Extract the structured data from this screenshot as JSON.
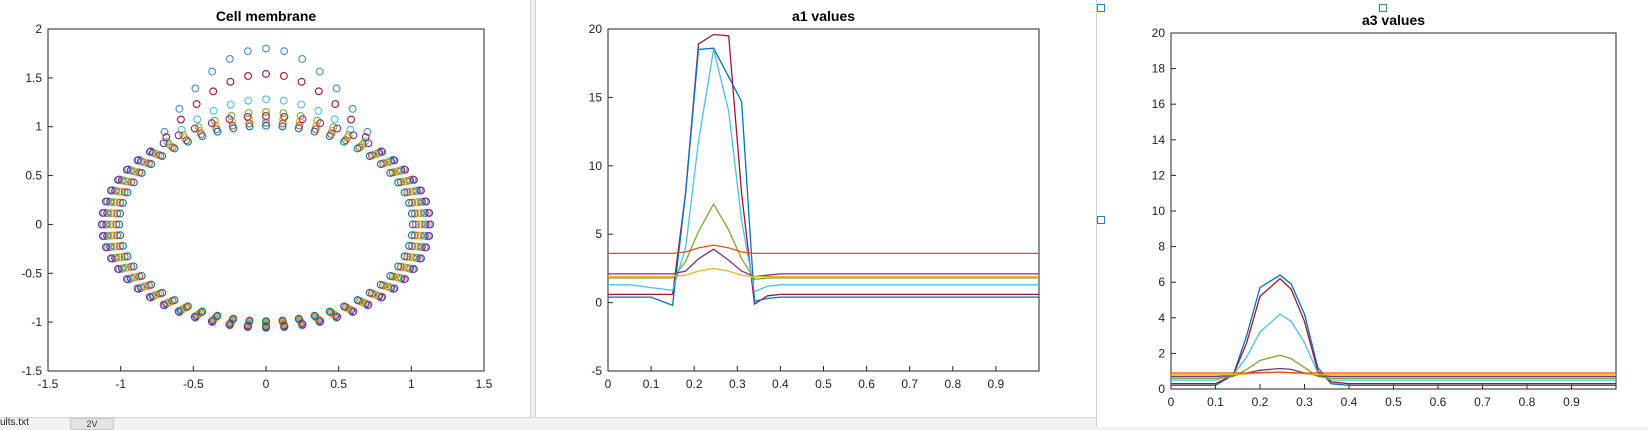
{
  "chart_data": [
    {
      "type": "scatter",
      "title": "Cell membrane",
      "xlim": [
        -1.5,
        1.5
      ],
      "ylim": [
        -1.5,
        2
      ],
      "xticks": [
        "-1.5",
        "-1",
        "-0.5",
        "0",
        "0.5",
        "1",
        "1.5"
      ],
      "yticks": [
        "-1.5",
        "-1",
        "-0.5",
        "0",
        "0.5",
        "1",
        "1.5",
        "2"
      ],
      "marker": "circle-open",
      "series": [
        {
          "color": "#4a8fc4",
          "rx": 1.12,
          "ry": 1.06,
          "bump_height": 0.74
        },
        {
          "color": "#a2142f",
          "rx": 1.1,
          "ry": 1.04,
          "bump_height": 0.5
        },
        {
          "color": "#4dbeee",
          "rx": 1.09,
          "ry": 1.03,
          "bump_height": 0.25
        },
        {
          "color": "#77ac30",
          "rx": 1.07,
          "ry": 1.02,
          "bump_height": 0.13
        },
        {
          "color": "#edb120",
          "rx": 1.05,
          "ry": 1.01,
          "bump_height": 0.08
        },
        {
          "color": "#d95319",
          "rx": 1.03,
          "ry": 1.0,
          "bump_height": 0.04
        },
        {
          "color": "#0072bd",
          "rx": 1.01,
          "ry": 0.99,
          "bump_height": 0.02
        },
        {
          "color": "#7e2f8e",
          "rx": 1.13,
          "ry": 1.05,
          "bump_height": 0.06
        }
      ]
    },
    {
      "type": "line",
      "title": "a1 values",
      "xlim": [
        0,
        1
      ],
      "ylim": [
        -5,
        20
      ],
      "xticks": [
        "0",
        "0.1",
        "0.2",
        "0.3",
        "0.4",
        "0.5",
        "0.6",
        "0.7",
        "0.8",
        "0.9"
      ],
      "yticks": [
        "-5",
        "0",
        "5",
        "10",
        "15",
        "20"
      ],
      "x": [
        0,
        0.05,
        0.1,
        0.15,
        0.18,
        0.21,
        0.245,
        0.28,
        0.31,
        0.34,
        0.37,
        0.4,
        0.45,
        0.5,
        0.6,
        0.7,
        0.8,
        0.9,
        1.0
      ],
      "series": [
        {
          "color": "#a2142f",
          "values": [
            0.6,
            0.6,
            0.6,
            0.6,
            8.0,
            18.9,
            19.6,
            19.5,
            8.0,
            -0.1,
            0.5,
            0.6,
            0.6,
            0.6,
            0.6,
            0.6,
            0.6,
            0.6,
            0.6
          ]
        },
        {
          "color": "#0072bd",
          "values": [
            0.4,
            0.4,
            0.4,
            -0.2,
            8.0,
            18.5,
            18.6,
            16.5,
            14.7,
            0.1,
            0.3,
            0.4,
            0.4,
            0.4,
            0.4,
            0.4,
            0.4,
            0.4,
            0.4
          ]
        },
        {
          "color": "#4dbeee",
          "values": [
            1.3,
            1.3,
            1.1,
            0.9,
            4.0,
            11.8,
            18.5,
            14.0,
            6.0,
            0.8,
            1.2,
            1.3,
            1.3,
            1.3,
            1.3,
            1.3,
            1.3,
            1.3,
            1.3
          ]
        },
        {
          "color": "#77ac30",
          "values": [
            1.8,
            1.8,
            1.8,
            1.8,
            3.0,
            5.2,
            7.2,
            5.3,
            3.2,
            1.7,
            1.8,
            1.8,
            1.8,
            1.8,
            1.8,
            1.8,
            1.8,
            1.8,
            1.8
          ]
        },
        {
          "color": "#7e2f8e",
          "values": [
            2.1,
            2.1,
            2.1,
            2.1,
            2.3,
            3.2,
            3.9,
            3.1,
            2.3,
            1.9,
            2.0,
            2.1,
            2.1,
            2.1,
            2.1,
            2.1,
            2.1,
            2.1,
            2.1
          ]
        },
        {
          "color": "#edb120",
          "values": [
            1.9,
            1.9,
            1.9,
            1.9,
            2.0,
            2.3,
            2.5,
            2.3,
            2.0,
            1.9,
            1.9,
            1.9,
            1.9,
            1.9,
            1.9,
            1.9,
            1.9,
            1.9,
            1.9
          ]
        },
        {
          "color": "#d95319",
          "values": [
            3.6,
            3.6,
            3.6,
            3.6,
            3.7,
            4.0,
            4.2,
            4.0,
            3.7,
            3.6,
            3.6,
            3.6,
            3.6,
            3.6,
            3.6,
            3.6,
            3.6,
            3.6,
            3.6
          ]
        }
      ]
    },
    {
      "type": "line",
      "title": "a3 values",
      "xlim": [
        0,
        1
      ],
      "ylim": [
        0,
        20
      ],
      "xticks": [
        "0",
        "0.1",
        "0.2",
        "0.3",
        "0.4",
        "0.5",
        "0.6",
        "0.7",
        "0.8",
        "0.9"
      ],
      "yticks": [
        "0",
        "2",
        "4",
        "6",
        "8",
        "10",
        "12",
        "14",
        "16",
        "18",
        "20"
      ],
      "x": [
        0,
        0.05,
        0.1,
        0.14,
        0.17,
        0.2,
        0.245,
        0.27,
        0.3,
        0.33,
        0.36,
        0.4,
        0.5,
        0.6,
        0.7,
        0.8,
        0.9,
        1.0
      ],
      "series": [
        {
          "color": "#0072bd",
          "values": [
            0.2,
            0.2,
            0.2,
            0.8,
            3.0,
            5.7,
            6.4,
            5.9,
            4.2,
            1.2,
            0.3,
            0.2,
            0.2,
            0.2,
            0.2,
            0.2,
            0.2,
            0.2
          ]
        },
        {
          "color": "#a2142f",
          "values": [
            0.3,
            0.3,
            0.3,
            0.8,
            2.6,
            5.2,
            6.2,
            5.6,
            3.8,
            1.0,
            0.4,
            0.3,
            0.3,
            0.3,
            0.3,
            0.3,
            0.3,
            0.3
          ]
        },
        {
          "color": "#4dbeee",
          "values": [
            0.5,
            0.5,
            0.5,
            0.8,
            1.8,
            3.2,
            4.2,
            3.8,
            2.6,
            0.9,
            0.5,
            0.5,
            0.5,
            0.5,
            0.5,
            0.5,
            0.5,
            0.5
          ]
        },
        {
          "color": "#77ac30",
          "values": [
            0.6,
            0.6,
            0.6,
            0.7,
            1.1,
            1.6,
            1.9,
            1.7,
            1.2,
            0.7,
            0.6,
            0.6,
            0.6,
            0.6,
            0.6,
            0.6,
            0.6,
            0.6
          ]
        },
        {
          "color": "#7e2f8e",
          "values": [
            0.7,
            0.7,
            0.7,
            0.75,
            0.9,
            1.05,
            1.15,
            1.1,
            0.9,
            0.75,
            0.7,
            0.7,
            0.7,
            0.7,
            0.7,
            0.7,
            0.7,
            0.7
          ]
        },
        {
          "color": "#edb120",
          "values": [
            0.8,
            0.8,
            0.8,
            0.8,
            0.85,
            0.9,
            0.95,
            0.9,
            0.85,
            0.8,
            0.8,
            0.8,
            0.8,
            0.8,
            0.8,
            0.8,
            0.8,
            0.8
          ]
        },
        {
          "color": "#d95319",
          "values": [
            0.9,
            0.9,
            0.9,
            0.9,
            0.9,
            0.92,
            0.95,
            0.92,
            0.9,
            0.9,
            0.9,
            0.9,
            0.9,
            0.9,
            0.9,
            0.9,
            0.9,
            0.9
          ]
        }
      ]
    }
  ],
  "footer": {
    "file_label": "ults.txt",
    "tab_label": "2V"
  }
}
